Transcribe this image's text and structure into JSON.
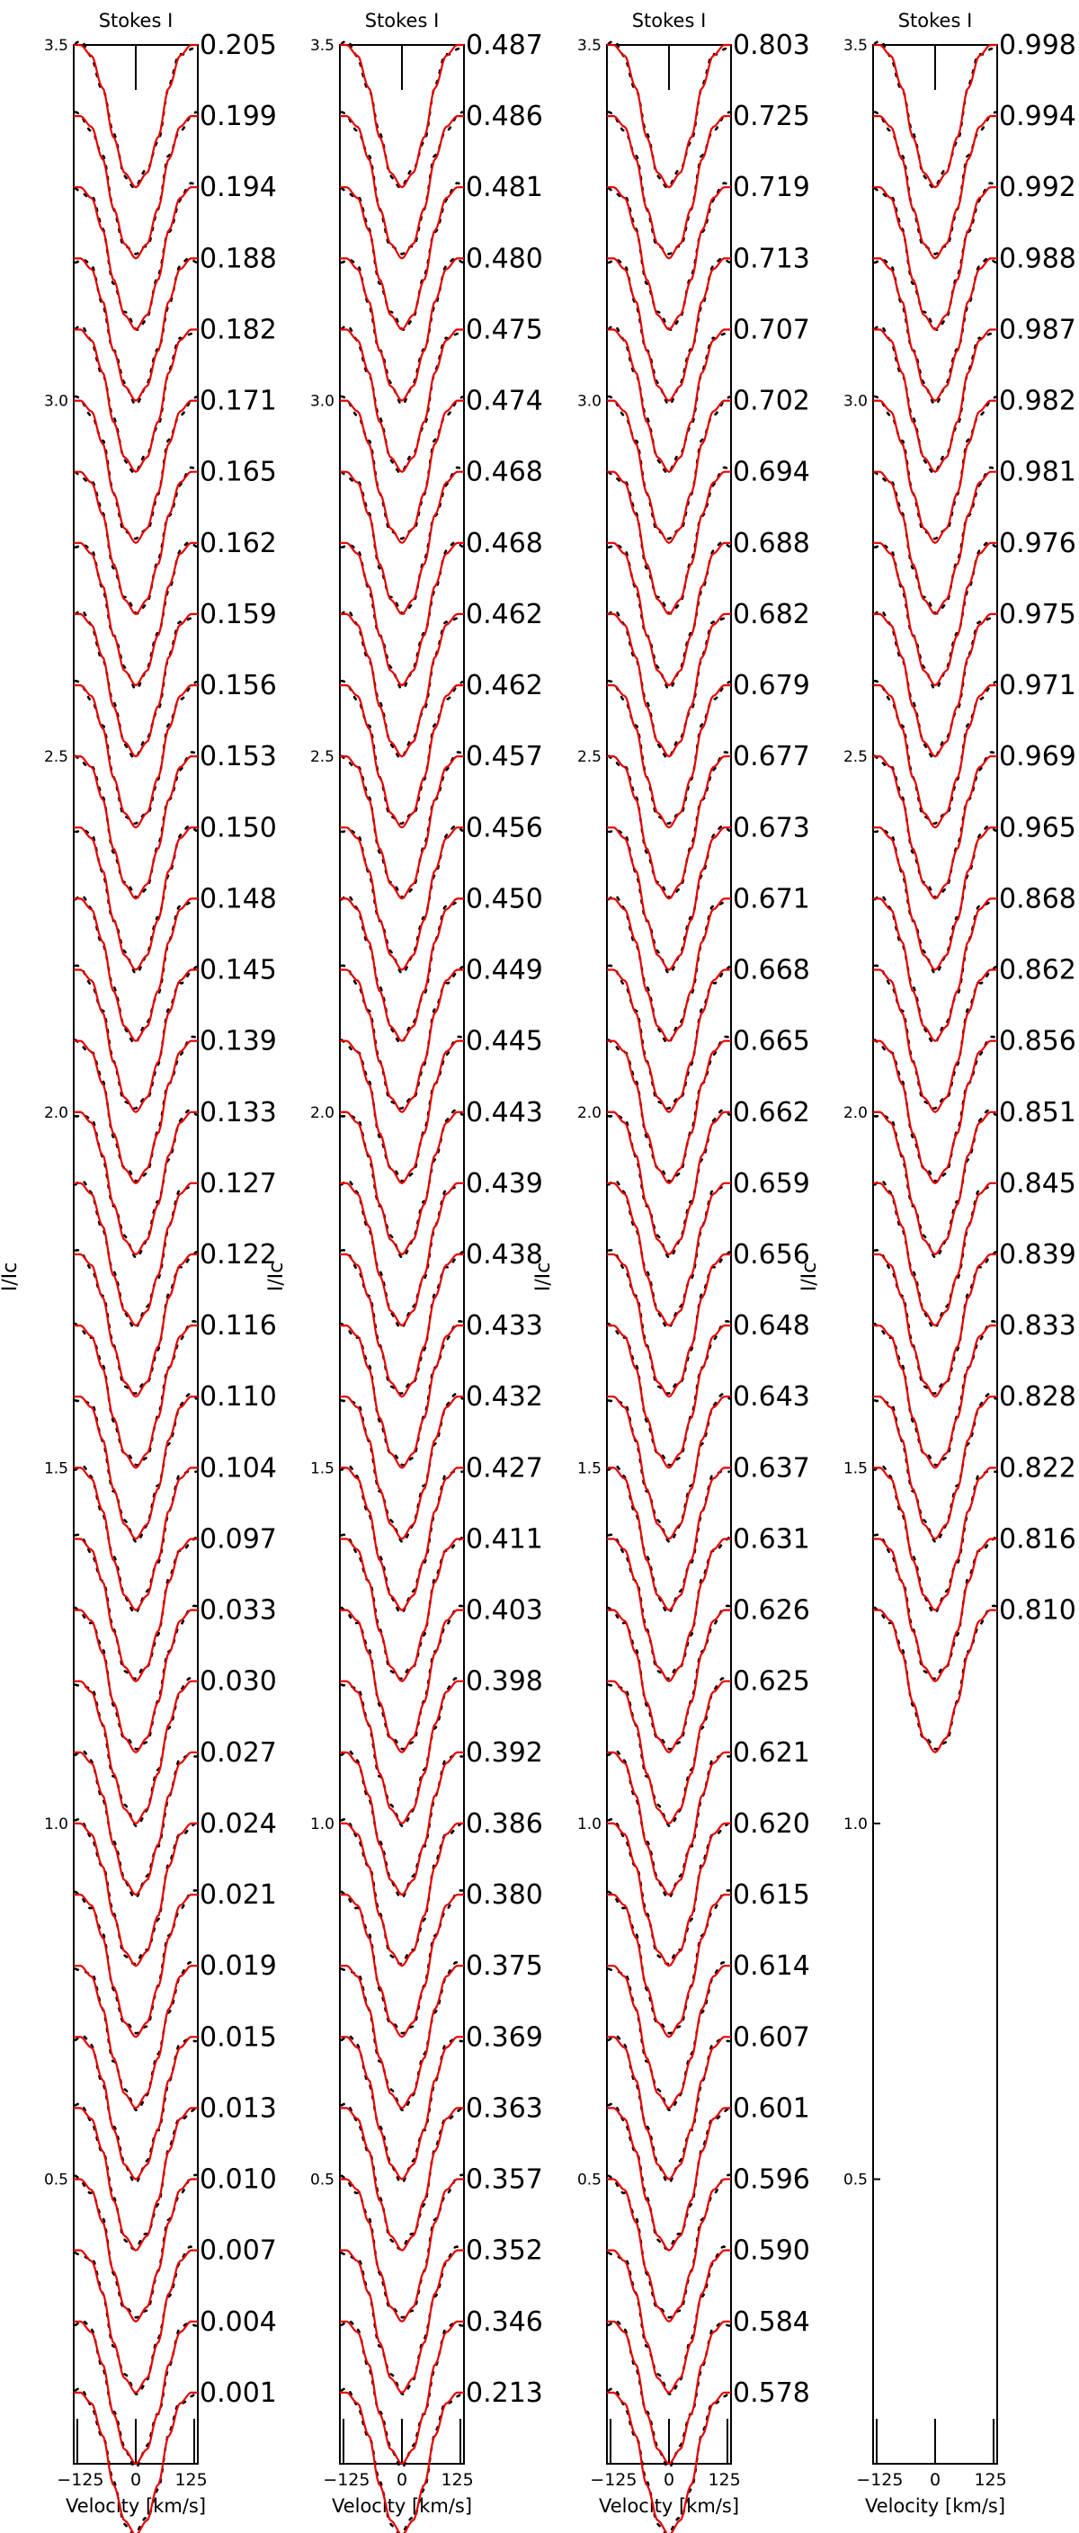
{
  "chart_data": {
    "type": "line",
    "panels": [
      {
        "title": "Stokes I",
        "xlabel": "Velocity [km/s]",
        "ylabel": "I/Ic",
        "ylim": [
          0.1,
          3.5
        ],
        "yticks": [
          "0.5",
          "1.0",
          "1.5",
          "2.0",
          "2.5",
          "3.0",
          "3.5"
        ],
        "xlim": [
          -140,
          140
        ],
        "xticks": [
          "-125",
          "0",
          "125"
        ],
        "phases": [
          "0.205",
          "0.199",
          "0.194",
          "0.188",
          "0.182",
          "0.171",
          "0.165",
          "0.162",
          "0.159",
          "0.156",
          "0.153",
          "0.150",
          "0.148",
          "0.145",
          "0.139",
          "0.133",
          "0.127",
          "0.122",
          "0.116",
          "0.110",
          "0.104",
          "0.097",
          "0.033",
          "0.030",
          "0.027",
          "0.024",
          "0.021",
          "0.019",
          "0.015",
          "0.013",
          "0.010",
          "0.007",
          "0.004",
          "0.001"
        ]
      },
      {
        "title": "Stokes I",
        "xlabel": "Velocity [km/s]",
        "ylabel": "I/Ic",
        "ylim": [
          0.1,
          3.5
        ],
        "yticks": [
          "0.5",
          "1.0",
          "1.5",
          "2.0",
          "2.5",
          "3.0",
          "3.5"
        ],
        "xlim": [
          -140,
          140
        ],
        "xticks": [
          "-125",
          "0",
          "125"
        ],
        "phases": [
          "0.487",
          "0.486",
          "0.481",
          "0.480",
          "0.475",
          "0.474",
          "0.468",
          "0.468",
          "0.462",
          "0.462",
          "0.457",
          "0.456",
          "0.450",
          "0.449",
          "0.445",
          "0.443",
          "0.439",
          "0.438",
          "0.433",
          "0.432",
          "0.427",
          "0.411",
          "0.403",
          "0.398",
          "0.392",
          "0.386",
          "0.380",
          "0.375",
          "0.369",
          "0.363",
          "0.357",
          "0.352",
          "0.346",
          "0.213"
        ]
      },
      {
        "title": "Stokes I",
        "xlabel": "Velocity [km/s]",
        "ylabel": "I/Ic",
        "ylim": [
          0.1,
          3.5
        ],
        "yticks": [
          "0.5",
          "1.0",
          "1.5",
          "2.0",
          "2.5",
          "3.0",
          "3.5"
        ],
        "xlim": [
          -140,
          140
        ],
        "xticks": [
          "-125",
          "0",
          "125"
        ],
        "phases": [
          "0.803",
          "0.725",
          "0.719",
          "0.713",
          "0.707",
          "0.702",
          "0.694",
          "0.688",
          "0.682",
          "0.679",
          "0.677",
          "0.673",
          "0.671",
          "0.668",
          "0.665",
          "0.662",
          "0.659",
          "0.656",
          "0.648",
          "0.643",
          "0.637",
          "0.631",
          "0.626",
          "0.625",
          "0.621",
          "0.620",
          "0.615",
          "0.614",
          "0.607",
          "0.601",
          "0.596",
          "0.590",
          "0.584",
          "0.578"
        ]
      },
      {
        "title": "Stokes I",
        "xlabel": "Velocity [km/s]",
        "ylabel": "I/Ic",
        "ylim": [
          0.1,
          3.5
        ],
        "yticks": [
          "0.5",
          "1.0",
          "1.5",
          "2.0",
          "2.5",
          "3.0",
          "3.5"
        ],
        "xlim": [
          -140,
          140
        ],
        "xticks": [
          "-125",
          "0",
          "125"
        ],
        "phases": [
          "0.998",
          "0.994",
          "0.992",
          "0.988",
          "0.987",
          "0.982",
          "0.981",
          "0.976",
          "0.975",
          "0.971",
          "0.969",
          "0.965",
          "0.868",
          "0.862",
          "0.856",
          "0.851",
          "0.845",
          "0.839",
          "0.833",
          "0.828",
          "0.822",
          "0.816",
          "0.810"
        ]
      }
    ],
    "profile": {
      "offset_step": 0.1,
      "velocity": [
        -125,
        -100,
        -75,
        -50,
        -25,
        0,
        25,
        50,
        75,
        100,
        125
      ],
      "model_relative_intensity": [
        1.0,
        0.985,
        0.94,
        0.87,
        0.82,
        0.8,
        0.82,
        0.87,
        0.94,
        0.985,
        1.0
      ]
    },
    "colors": {
      "observed": "#000000",
      "model": "#e60000"
    }
  }
}
